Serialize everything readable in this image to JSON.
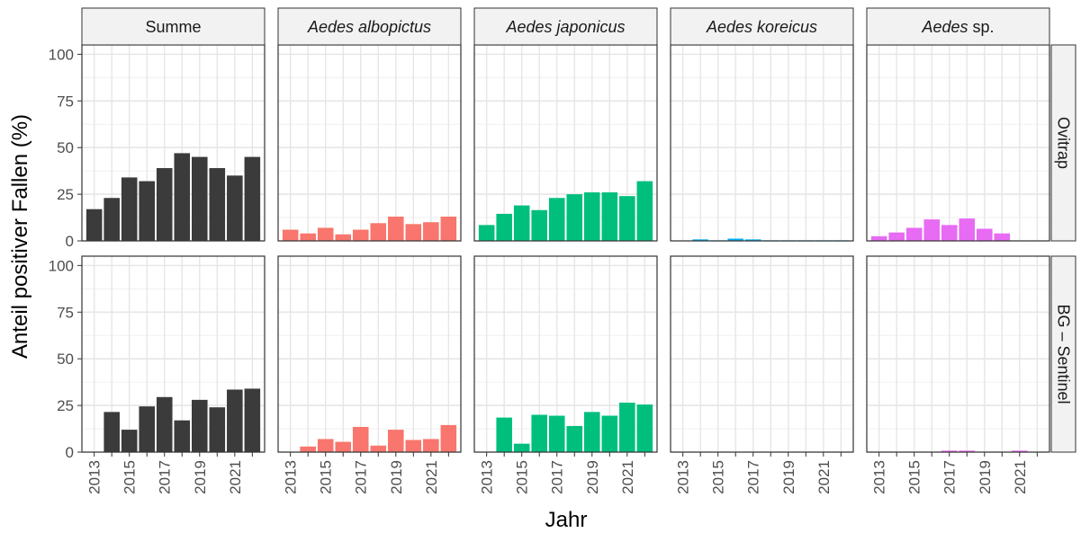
{
  "chart_data": {
    "type": "bar",
    "xlabel": "Jahr",
    "ylabel": "Anteil positiver Fallen (%)",
    "ylim": [
      0,
      105
    ],
    "yticks": [
      0,
      25,
      50,
      75,
      100
    ],
    "xlim": [
      2012.3,
      2022.7
    ],
    "xtick_labels": [
      "2013",
      "2015",
      "2017",
      "2019",
      "2021"
    ],
    "xtick_values": [
      2013,
      2015,
      2017,
      2019,
      2021
    ],
    "years": [
      2013,
      2014,
      2015,
      2016,
      2017,
      2018,
      2019,
      2020,
      2021,
      2022
    ],
    "grid": true,
    "columns": [
      {
        "prefix": "",
        "italic": "",
        "suffix": "",
        "plain": "Summe",
        "color": "#3b3b3b"
      },
      {
        "prefix": "",
        "italic": "Aedes albopictus",
        "suffix": "",
        "plain": "",
        "color": "#f8766d"
      },
      {
        "prefix": "",
        "italic": "Aedes japonicus",
        "suffix": "",
        "plain": "",
        "color": "#00bf7d"
      },
      {
        "prefix": "",
        "italic": "Aedes koreicus",
        "suffix": "",
        "plain": "",
        "color": "#00b0f6"
      },
      {
        "prefix": "",
        "italic": "Aedes",
        "suffix": " sp.",
        "plain": "",
        "color": "#e76bf3"
      }
    ],
    "rows": [
      {
        "label": "Ovitrap"
      },
      {
        "label": "BG – Sentinel"
      }
    ],
    "values": [
      [
        [
          17,
          23,
          34,
          32,
          39,
          47,
          45,
          39,
          35,
          45
        ],
        [
          6,
          4,
          7,
          3.5,
          6,
          9.5,
          13,
          9,
          10,
          13
        ],
        [
          8.5,
          14.5,
          19,
          16.5,
          23,
          25,
          26,
          26,
          24,
          32
        ],
        [
          0,
          0.8,
          0.3,
          1.2,
          0.8,
          0.3,
          0.3,
          0.3,
          0.3,
          0.3
        ],
        [
          2.5,
          4.5,
          7,
          11.5,
          8.5,
          12,
          6.5,
          4,
          0,
          0
        ]
      ],
      [
        [
          0,
          21.5,
          12,
          24.5,
          29.5,
          17,
          28,
          24,
          33.5,
          34
        ],
        [
          0,
          3,
          7,
          5.5,
          13.5,
          3.5,
          12,
          6.5,
          7,
          14.5
        ],
        [
          0,
          18.5,
          4.5,
          20,
          19.5,
          14,
          21.5,
          19.5,
          26.5,
          25.5
        ],
        [
          0,
          0,
          0,
          0,
          0,
          0,
          0,
          0,
          0,
          0
        ],
        [
          0,
          0,
          0,
          0,
          0.8,
          0.8,
          0,
          0,
          0.8,
          0
        ]
      ]
    ]
  }
}
